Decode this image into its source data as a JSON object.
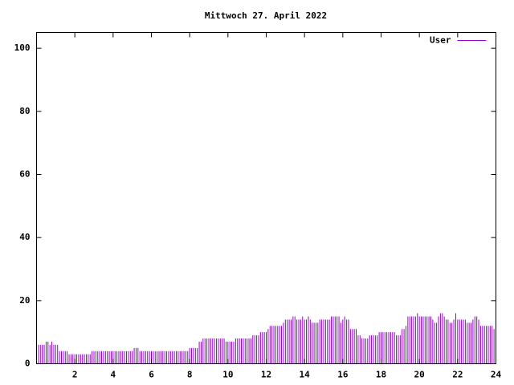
{
  "chart_data": {
    "type": "impulse",
    "title": "Mittwoch 27. April 2022",
    "x": [
      0,
      0.1,
      0.2,
      0.3,
      0.4,
      0.5,
      0.6,
      0.7,
      0.8,
      0.9,
      1,
      1.1,
      1.2,
      1.3,
      1.4,
      1.5,
      1.6,
      1.7,
      1.8,
      1.9,
      2,
      2.1,
      2.2,
      2.3,
      2.4,
      2.5,
      2.6,
      2.7,
      2.8,
      2.9,
      3,
      3.1,
      3.2,
      3.3,
      3.4,
      3.5,
      3.6,
      3.7,
      3.8,
      3.9,
      4,
      4.1,
      4.2,
      4.3,
      4.4,
      4.5,
      4.6,
      4.7,
      4.8,
      4.9,
      5,
      5.1,
      5.2,
      5.3,
      5.4,
      5.5,
      5.6,
      5.7,
      5.8,
      5.9,
      6,
      6.1,
      6.2,
      6.3,
      6.4,
      6.5,
      6.6,
      6.7,
      6.8,
      6.9,
      7,
      7.1,
      7.2,
      7.3,
      7.4,
      7.5,
      7.6,
      7.7,
      7.8,
      7.9,
      8,
      8.1,
      8.2,
      8.3,
      8.4,
      8.5,
      8.6,
      8.7,
      8.8,
      8.9,
      9,
      9.1,
      9.2,
      9.3,
      9.4,
      9.5,
      9.6,
      9.7,
      9.8,
      9.9,
      10,
      10.1,
      10.2,
      10.3,
      10.4,
      10.5,
      10.6,
      10.7,
      10.8,
      10.9,
      11,
      11.1,
      11.2,
      11.3,
      11.4,
      11.5,
      11.6,
      11.7,
      11.8,
      11.9,
      12,
      12.1,
      12.2,
      12.3,
      12.4,
      12.5,
      12.6,
      12.7,
      12.8,
      12.9,
      13,
      13.1,
      13.2,
      13.3,
      13.4,
      13.5,
      13.6,
      13.7,
      13.8,
      13.9,
      14,
      14.1,
      14.2,
      14.3,
      14.4,
      14.5,
      14.6,
      14.7,
      14.8,
      14.9,
      15,
      15.1,
      15.2,
      15.3,
      15.4,
      15.5,
      15.6,
      15.7,
      15.8,
      15.9,
      16,
      16.1,
      16.2,
      16.3,
      16.4,
      16.5,
      16.6,
      16.7,
      16.8,
      16.9,
      17,
      17.1,
      17.2,
      17.3,
      17.4,
      17.5,
      17.6,
      17.7,
      17.8,
      17.9,
      18,
      18.1,
      18.2,
      18.3,
      18.4,
      18.5,
      18.6,
      18.7,
      18.8,
      18.9,
      19,
      19.1,
      19.2,
      19.3,
      19.4,
      19.5,
      19.6,
      19.7,
      19.8,
      19.9,
      20,
      20.1,
      20.2,
      20.3,
      20.4,
      20.5,
      20.6,
      20.7,
      20.8,
      20.9,
      21,
      21.1,
      21.2,
      21.3,
      21.4,
      21.5,
      21.6,
      21.7,
      21.8,
      21.9,
      22,
      22.1,
      22.2,
      22.3,
      22.4,
      22.5,
      22.6,
      22.7,
      22.8,
      22.9,
      23,
      23.1,
      23.2,
      23.3,
      23.4,
      23.5,
      23.6,
      23.7,
      23.8,
      23.9
    ],
    "series": [
      {
        "name": "User",
        "color": "#9400d3",
        "values": [
          6,
          6,
          6,
          6,
          6,
          7,
          7,
          6,
          7,
          6,
          6,
          6,
          4,
          4,
          4,
          4,
          4,
          3,
          3,
          3,
          3,
          3,
          3,
          3,
          3,
          3,
          3,
          3,
          3,
          4,
          4,
          4,
          4,
          4,
          4,
          4,
          4,
          4,
          4,
          4,
          4,
          4,
          4,
          4,
          4,
          4,
          4,
          4,
          4,
          4,
          4,
          5,
          5,
          5,
          4,
          4,
          4,
          4,
          4,
          4,
          4,
          4,
          4,
          4,
          4,
          4,
          4,
          4,
          4,
          4,
          4,
          4,
          4,
          4,
          4,
          4,
          4,
          4,
          4,
          4,
          5,
          5,
          5,
          5,
          5,
          7,
          7,
          8,
          8,
          8,
          8,
          8,
          8,
          8,
          8,
          8,
          8,
          8,
          8,
          7,
          7,
          7,
          7,
          7,
          8,
          8,
          8,
          8,
          8,
          8,
          8,
          8,
          8,
          9,
          9,
          9,
          9,
          10,
          10,
          10,
          10,
          11,
          12,
          12,
          12,
          12,
          12,
          12,
          12,
          13,
          14,
          14,
          14,
          14,
          15,
          15,
          14,
          14,
          14,
          15,
          14,
          14,
          15,
          14,
          13,
          13,
          13,
          13,
          14,
          14,
          14,
          14,
          14,
          14,
          15,
          15,
          15,
          15,
          15,
          13,
          14,
          15,
          14,
          14,
          11,
          11,
          11,
          11,
          9,
          9,
          8,
          8,
          8,
          8,
          9,
          9,
          9,
          9,
          9,
          10,
          10,
          10,
          10,
          10,
          10,
          10,
          10,
          10,
          9,
          9,
          9,
          11,
          11,
          12,
          15,
          15,
          15,
          15,
          15,
          16,
          15,
          15,
          15,
          15,
          15,
          15,
          15,
          14,
          13,
          13,
          15,
          16,
          16,
          15,
          14,
          14,
          13,
          13,
          14,
          16,
          14,
          14,
          14,
          14,
          14,
          13,
          13,
          13,
          14,
          15,
          15,
          14,
          12,
          12,
          12,
          12,
          12,
          12,
          12,
          11
        ]
      }
    ],
    "xlim": [
      0,
      24
    ],
    "xticks": [
      2,
      4,
      6,
      8,
      10,
      12,
      14,
      16,
      18,
      20,
      22,
      24
    ],
    "ylim": [
      0,
      105
    ],
    "yticks": [
      0,
      20,
      40,
      60,
      80,
      100
    ],
    "legend": "top-right"
  }
}
